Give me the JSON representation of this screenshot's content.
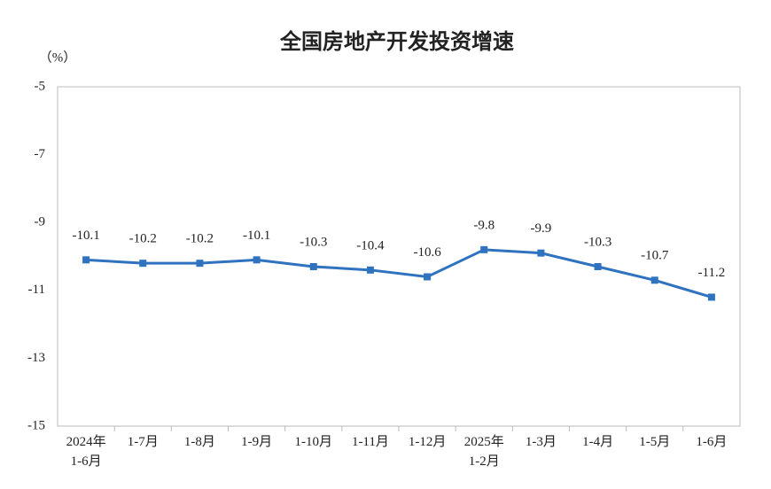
{
  "chart_data": {
    "type": "line",
    "title": "全国房地产开发投资增速",
    "y_unit": "（%）",
    "categories": [
      "2024年\n1-6月",
      "1-7月",
      "1-8月",
      "1-9月",
      "1-10月",
      "1-11月",
      "1-12月",
      "2025年\n1-2月",
      "1-3月",
      "1-4月",
      "1-5月",
      "1-6月"
    ],
    "values": [
      -10.1,
      -10.2,
      -10.2,
      -10.1,
      -10.3,
      -10.4,
      -10.6,
      -9.8,
      -9.9,
      -10.3,
      -10.7,
      -11.2
    ],
    "color": "#2f72c0",
    "ylim": [
      -15,
      -5
    ],
    "yticks": [
      -5,
      -7,
      -9,
      -11,
      -13,
      -15
    ],
    "grid": false
  }
}
